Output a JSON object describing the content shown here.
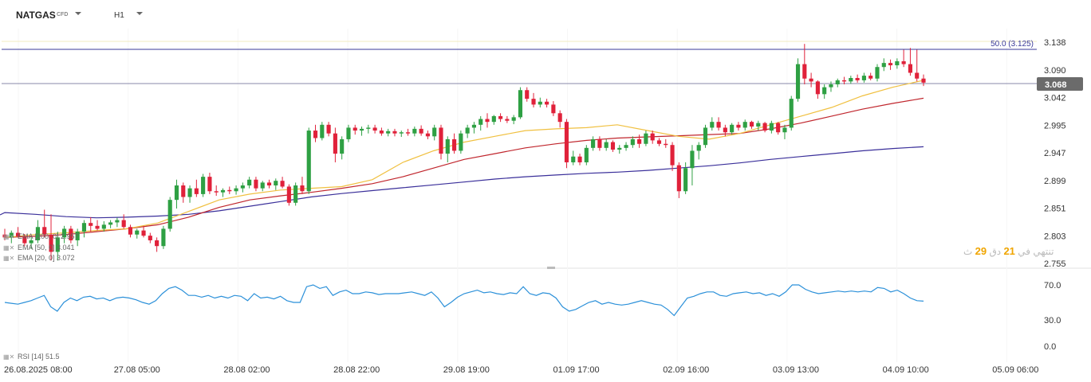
{
  "instrument": {
    "symbol": "NATGAS",
    "type": "CFD",
    "timeframe": "H1"
  },
  "price_axis": {
    "ticks": [
      "3.138",
      "3.090",
      "3.042",
      "2.995",
      "2.947",
      "2.899",
      "2.851",
      "2.803",
      "2.755"
    ],
    "current": "3.068"
  },
  "fib_label": "50.0 (3.125)",
  "rsi_axis": {
    "ticks": [
      "70.0",
      "30.0",
      "0.0"
    ]
  },
  "time_axis": {
    "ticks": [
      "26.08.2025  08:00",
      "27.08  05:00",
      "28.08  02:00",
      "28.08  22:00",
      "29.08  19:00",
      "01.09  17:00",
      "02.09  16:00",
      "03.09  13:00",
      "04.09  10:00",
      "05.09  06:00"
    ]
  },
  "legend": {
    "ema200": "EMA [200, 0] 2.957",
    "ema50": "EMA [50, 0] 3.041",
    "ema20": "EMA [20, 0] 3.072",
    "rsi": "RSI [14] 51.5"
  },
  "countdown": {
    "prefix": "تنتهي في",
    "minutes": "21",
    "mid": "دق",
    "seconds": "29",
    "suffix": "ث"
  },
  "colors": {
    "up": "#2ea043",
    "down": "#e0213a",
    "ema20": "#f0c040",
    "ema50": "#c0262d",
    "ema200": "#3a2f9a",
    "rsi": "#2b90d9",
    "hline": "#3a3a9a",
    "label_bg": "#6b6b6b"
  },
  "chart_data": {
    "type": "candlestick",
    "ylim": [
      2.755,
      3.138
    ],
    "candles": [
      [
        2.805,
        2.815,
        2.795,
        2.8
      ],
      [
        2.8,
        2.812,
        2.79,
        2.808
      ],
      [
        2.808,
        2.818,
        2.8,
        2.802
      ],
      [
        2.802,
        2.806,
        2.785,
        2.79
      ],
      [
        2.79,
        2.8,
        2.78,
        2.795
      ],
      [
        2.795,
        2.83,
        2.79,
        2.818
      ],
      [
        2.818,
        2.848,
        2.8,
        2.805
      ],
      [
        2.805,
        2.84,
        2.76,
        2.775
      ],
      [
        2.775,
        2.81,
        2.76,
        2.8
      ],
      [
        2.8,
        2.82,
        2.79,
        2.815
      ],
      [
        2.815,
        2.82,
        2.79,
        2.795
      ],
      [
        2.795,
        2.815,
        2.785,
        2.81
      ],
      [
        2.81,
        2.83,
        2.8,
        2.825
      ],
      [
        2.825,
        2.835,
        2.81,
        2.82
      ],
      [
        2.82,
        2.83,
        2.812,
        2.815
      ],
      [
        2.815,
        2.828,
        2.81,
        2.822
      ],
      [
        2.822,
        2.83,
        2.816,
        2.826
      ],
      [
        2.826,
        2.834,
        2.818,
        2.83
      ],
      [
        2.83,
        2.84,
        2.815,
        2.818
      ],
      [
        2.818,
        2.822,
        2.8,
        2.805
      ],
      [
        2.805,
        2.815,
        2.798,
        2.812
      ],
      [
        2.812,
        2.82,
        2.8,
        2.803
      ],
      [
        2.803,
        2.808,
        2.79,
        2.795
      ],
      [
        2.795,
        2.8,
        2.775,
        2.785
      ],
      [
        2.785,
        2.82,
        2.78,
        2.815
      ],
      [
        2.815,
        2.87,
        2.81,
        2.865
      ],
      [
        2.865,
        2.9,
        2.85,
        2.89
      ],
      [
        2.89,
        2.895,
        2.86,
        2.87
      ],
      [
        2.87,
        2.89,
        2.86,
        2.885
      ],
      [
        2.885,
        2.9,
        2.87,
        2.875
      ],
      [
        2.875,
        2.91,
        2.87,
        2.905
      ],
      [
        2.905,
        2.912,
        2.875,
        2.88
      ],
      [
        2.88,
        2.89,
        2.872,
        2.878
      ],
      [
        2.878,
        2.885,
        2.87,
        2.882
      ],
      [
        2.882,
        2.888,
        2.875,
        2.88
      ],
      [
        2.88,
        2.89,
        2.874,
        2.885
      ],
      [
        2.885,
        2.895,
        2.878,
        2.89
      ],
      [
        2.89,
        2.905,
        2.885,
        2.9
      ],
      [
        2.9,
        2.905,
        2.88,
        2.885
      ],
      [
        2.885,
        2.898,
        2.88,
        2.895
      ],
      [
        2.895,
        2.9,
        2.885,
        2.89
      ],
      [
        2.89,
        2.902,
        2.882,
        2.898
      ],
      [
        2.898,
        2.905,
        2.885,
        2.888
      ],
      [
        2.888,
        2.892,
        2.855,
        2.86
      ],
      [
        2.86,
        2.895,
        2.855,
        2.89
      ],
      [
        2.89,
        2.905,
        2.875,
        2.88
      ],
      [
        2.88,
        2.99,
        2.875,
        2.985
      ],
      [
        2.985,
        2.995,
        2.965,
        2.972
      ],
      [
        2.972,
        3.0,
        2.968,
        2.995
      ],
      [
        2.995,
        3.0,
        2.975,
        2.98
      ],
      [
        2.98,
        2.99,
        2.93,
        2.945
      ],
      [
        2.945,
        2.975,
        2.935,
        2.97
      ],
      [
        2.97,
        2.995,
        2.965,
        2.99
      ],
      [
        2.99,
        2.995,
        2.978,
        2.985
      ],
      [
        2.985,
        2.992,
        2.976,
        2.988
      ],
      [
        2.988,
        2.995,
        2.98,
        2.99
      ],
      [
        2.99,
        2.995,
        2.98,
        2.985
      ],
      [
        2.985,
        2.99,
        2.976,
        2.98
      ],
      [
        2.98,
        2.988,
        2.975,
        2.984
      ],
      [
        2.984,
        2.988,
        2.975,
        2.98
      ],
      [
        2.98,
        2.985,
        2.974,
        2.982
      ],
      [
        2.982,
        2.988,
        2.976,
        2.98
      ],
      [
        2.98,
        2.992,
        2.975,
        2.988
      ],
      [
        2.988,
        2.994,
        2.976,
        2.98
      ],
      [
        2.98,
        2.985,
        2.97,
        2.975
      ],
      [
        2.975,
        2.995,
        2.968,
        2.99
      ],
      [
        2.99,
        2.995,
        2.935,
        2.945
      ],
      [
        2.945,
        2.975,
        2.93,
        2.97
      ],
      [
        2.97,
        2.98,
        2.945,
        2.95
      ],
      [
        2.95,
        2.985,
        2.945,
        2.98
      ],
      [
        2.98,
        2.995,
        2.972,
        2.99
      ],
      [
        2.99,
        3.0,
        2.98,
        2.995
      ],
      [
        2.995,
        3.01,
        2.985,
        3.005
      ],
      [
        3.005,
        3.015,
        2.99,
        3.0
      ],
      [
        3.0,
        3.012,
        2.995,
        3.01
      ],
      [
        3.01,
        3.015,
        3.0,
        3.005
      ],
      [
        3.005,
        3.01,
        2.998,
        3.002
      ],
      [
        3.002,
        3.012,
        2.996,
        3.008
      ],
      [
        3.008,
        3.06,
        3.005,
        3.055
      ],
      [
        3.055,
        3.06,
        3.035,
        3.04
      ],
      [
        3.04,
        3.05,
        3.025,
        3.03
      ],
      [
        3.03,
        3.042,
        3.025,
        3.035
      ],
      [
        3.035,
        3.04,
        3.025,
        3.03
      ],
      [
        3.03,
        3.036,
        3.01,
        3.015
      ],
      [
        3.015,
        3.02,
        2.99,
        3.0
      ],
      [
        3.0,
        3.005,
        2.92,
        2.93
      ],
      [
        2.93,
        2.95,
        2.925,
        2.94
      ],
      [
        2.94,
        2.945,
        2.925,
        2.93
      ],
      [
        2.93,
        2.96,
        2.925,
        2.955
      ],
      [
        2.955,
        2.975,
        2.95,
        2.97
      ],
      [
        2.97,
        2.975,
        2.95,
        2.955
      ],
      [
        2.955,
        2.97,
        2.95,
        2.965
      ],
      [
        2.965,
        2.968,
        2.948,
        2.952
      ],
      [
        2.952,
        2.96,
        2.945,
        2.955
      ],
      [
        2.955,
        2.965,
        2.95,
        2.96
      ],
      [
        2.96,
        2.975,
        2.955,
        2.97
      ],
      [
        2.97,
        2.978,
        2.955,
        2.962
      ],
      [
        2.962,
        2.985,
        2.958,
        2.98
      ],
      [
        2.98,
        2.985,
        2.962,
        2.968
      ],
      [
        2.968,
        2.972,
        2.958,
        2.962
      ],
      [
        2.962,
        2.97,
        2.955,
        2.96
      ],
      [
        2.96,
        2.965,
        2.915,
        2.925
      ],
      [
        2.925,
        2.93,
        2.868,
        2.88
      ],
      [
        2.88,
        2.93,
        2.875,
        2.92
      ],
      [
        2.92,
        2.96,
        2.89,
        2.95
      ],
      [
        2.95,
        2.965,
        2.935,
        2.96
      ],
      [
        2.96,
        2.995,
        2.955,
        2.99
      ],
      [
        2.99,
        3.008,
        2.985,
        3.0
      ],
      [
        3.0,
        3.008,
        2.985,
        2.99
      ],
      [
        2.99,
        2.995,
        2.975,
        2.982
      ],
      [
        2.982,
        2.998,
        2.978,
        2.995
      ],
      [
        2.995,
        3.0,
        2.985,
        2.99
      ],
      [
        2.99,
        3.004,
        2.985,
        3.0
      ],
      [
        3.0,
        3.002,
        2.988,
        2.992
      ],
      [
        2.992,
        3.002,
        2.985,
        2.998
      ],
      [
        2.998,
        3.0,
        2.982,
        2.985
      ],
      [
        2.985,
        3.002,
        2.98,
        2.998
      ],
      [
        2.998,
        3.0,
        2.978,
        2.982
      ],
      [
        2.982,
        2.995,
        2.97,
        2.99
      ],
      [
        2.99,
        3.045,
        2.985,
        3.04
      ],
      [
        3.04,
        3.11,
        3.035,
        3.1
      ],
      [
        3.1,
        3.135,
        3.065,
        3.075
      ],
      [
        3.075,
        3.085,
        3.06,
        3.07
      ],
      [
        3.07,
        3.072,
        3.04,
        3.048
      ],
      [
        3.048,
        3.065,
        3.04,
        3.06
      ],
      [
        3.06,
        3.07,
        3.052,
        3.065
      ],
      [
        3.065,
        3.075,
        3.06,
        3.072
      ],
      [
        3.072,
        3.078,
        3.065,
        3.07
      ],
      [
        3.07,
        3.08,
        3.066,
        3.076
      ],
      [
        3.076,
        3.082,
        3.068,
        3.072
      ],
      [
        3.072,
        3.085,
        3.068,
        3.08
      ],
      [
        3.08,
        3.085,
        3.072,
        3.075
      ],
      [
        3.075,
        3.1,
        3.07,
        3.095
      ],
      [
        3.095,
        3.11,
        3.088,
        3.102
      ],
      [
        3.102,
        3.108,
        3.09,
        3.098
      ],
      [
        3.098,
        3.11,
        3.092,
        3.105
      ],
      [
        3.105,
        3.125,
        3.095,
        3.1
      ],
      [
        3.1,
        3.128,
        3.08,
        3.085
      ],
      [
        3.085,
        3.125,
        3.07,
        3.075
      ],
      [
        3.075,
        3.082,
        3.062,
        3.068
      ]
    ],
    "ema20": [
      2.8,
      2.805,
      2.808,
      2.812,
      2.815,
      2.825,
      2.845,
      2.865,
      2.875,
      2.882,
      2.885,
      2.888,
      2.9,
      2.93,
      2.95,
      2.965,
      2.975,
      2.985,
      2.988,
      2.99,
      2.995,
      2.985,
      2.975,
      2.97,
      2.98,
      2.995,
      3.01,
      3.025,
      3.045,
      3.06,
      3.072
    ],
    "ema50": [
      2.8,
      2.802,
      2.805,
      2.81,
      2.815,
      2.822,
      2.835,
      2.852,
      2.865,
      2.872,
      2.878,
      2.885,
      2.893,
      2.905,
      2.92,
      2.935,
      2.945,
      2.955,
      2.962,
      2.968,
      2.972,
      2.974,
      2.976,
      2.978,
      2.98,
      2.988,
      2.998,
      3.01,
      3.022,
      3.032,
      3.041
    ],
    "ema200": [
      2.843,
      2.84,
      2.836,
      2.834,
      2.835,
      2.837,
      2.84,
      2.846,
      2.854,
      2.862,
      2.87,
      2.876,
      2.881,
      2.886,
      2.891,
      2.896,
      2.901,
      2.905,
      2.908,
      2.911,
      2.913,
      2.916,
      2.92,
      2.924,
      2.929,
      2.935,
      2.94,
      2.945,
      2.95,
      2.954,
      2.957
    ],
    "rsi": [
      50,
      49,
      48,
      50,
      52,
      55,
      58,
      45,
      40,
      50,
      55,
      52,
      56,
      57,
      54,
      55,
      52,
      55,
      56,
      55,
      53,
      50,
      48,
      52,
      60,
      66,
      68,
      64,
      58,
      58,
      56,
      58,
      55,
      57,
      55,
      58,
      57,
      52,
      60,
      55,
      56,
      54,
      57,
      52,
      50,
      50,
      68,
      70,
      66,
      68,
      58,
      62,
      64,
      60,
      60,
      62,
      61,
      59,
      60,
      60,
      60,
      61,
      62,
      60,
      58,
      62,
      55,
      45,
      50,
      56,
      60,
      62,
      64,
      61,
      62,
      60,
      59,
      61,
      60,
      68,
      60,
      58,
      61,
      60,
      55,
      45,
      40,
      42,
      46,
      50,
      52,
      48,
      50,
      48,
      47,
      48,
      50,
      52,
      50,
      48,
      47,
      42,
      35,
      45,
      55,
      57,
      60,
      62,
      62,
      58,
      57,
      60,
      61,
      62,
      60,
      61,
      58,
      60,
      57,
      62,
      70,
      70,
      65,
      62,
      60,
      61,
      62,
      63,
      62,
      63,
      62,
      63,
      62,
      67,
      66,
      62,
      64,
      60,
      55,
      52,
      51.5
    ]
  }
}
